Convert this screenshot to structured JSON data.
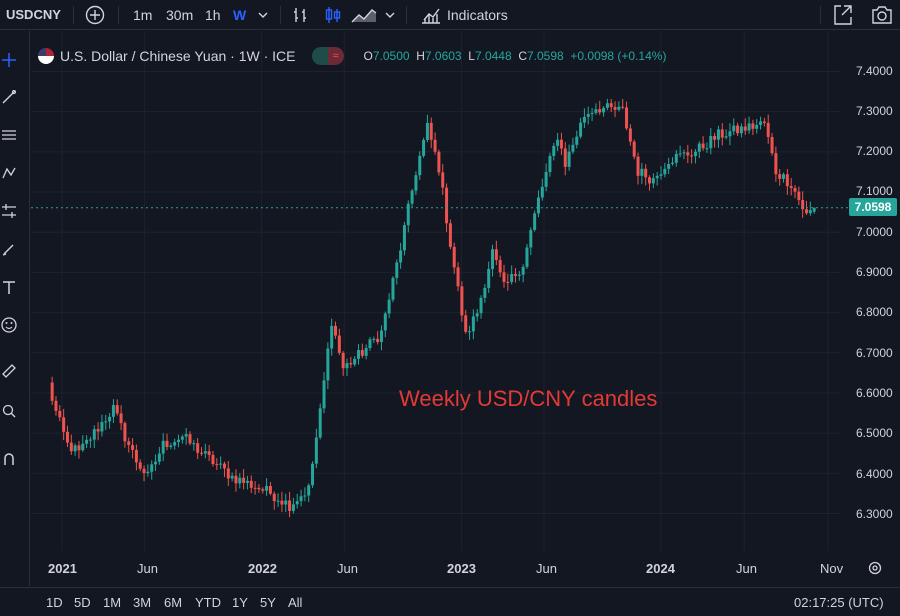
{
  "toolbar": {
    "symbol": "USDCNY",
    "intervals": [
      "1m",
      "30m",
      "1h",
      "W"
    ],
    "active_interval": "W",
    "indicators_label": "Indicators"
  },
  "legend": {
    "title": "U.S. Dollar / Chinese Yuan · 1W · ICE",
    "open_label": "O",
    "open": "7.0500",
    "high_label": "H",
    "high": "7.0603",
    "low_label": "L",
    "low": "7.0448",
    "close_label": "C",
    "close": "7.0598",
    "change": "+0.0098 (+0.14%)"
  },
  "annotation": "Weekly USD/CNY candles",
  "price_axis": {
    "ticks": [
      "7.4000",
      "7.3000",
      "7.2000",
      "7.1000",
      "7.0000",
      "6.9000",
      "6.8000",
      "6.7000",
      "6.6000",
      "6.5000",
      "6.4000",
      "6.3000"
    ],
    "last_price": "7.0598"
  },
  "time_axis": {
    "ticks": [
      "2021",
      "Jun",
      "2022",
      "Jun",
      "2023",
      "Jun",
      "2024",
      "Jun",
      "Nov"
    ]
  },
  "range_buttons": [
    "1D",
    "5D",
    "1M",
    "3M",
    "6M",
    "YTD",
    "1Y",
    "5Y",
    "All"
  ],
  "clock": "02:17:25 (UTC)",
  "colors": {
    "up": "#26a69a",
    "down": "#ef5350",
    "accent": "#2962ff",
    "annotation": "#e53935",
    "background": "#131722"
  },
  "chart_data": {
    "type": "candlestick",
    "title": "U.S. Dollar / Chinese Yuan · 1W · ICE",
    "ylim": [
      6.25,
      7.45
    ],
    "x_range": [
      "2020-12",
      "2024-11"
    ],
    "anchors": [
      [
        "2020-12-07",
        6.62
      ],
      [
        "2020-12-21",
        6.55
      ],
      [
        "2021-01-11",
        6.47
      ],
      [
        "2021-02-01",
        6.45
      ],
      [
        "2021-03-01",
        6.5
      ],
      [
        "2021-04-05",
        6.56
      ],
      [
        "2021-04-26",
        6.49
      ],
      [
        "2021-05-17",
        6.43
      ],
      [
        "2021-06-07",
        6.39
      ],
      [
        "2021-07-05",
        6.47
      ],
      [
        "2021-08-09",
        6.49
      ],
      [
        "2021-09-13",
        6.45
      ],
      [
        "2021-10-11",
        6.42
      ],
      [
        "2021-11-08",
        6.39
      ],
      [
        "2021-12-13",
        6.37
      ],
      [
        "2022-01-17",
        6.35
      ],
      [
        "2022-02-21",
        6.32
      ],
      [
        "2022-03-28",
        6.36
      ],
      [
        "2022-04-18",
        6.55
      ],
      [
        "2022-05-09",
        6.78
      ],
      [
        "2022-05-30",
        6.66
      ],
      [
        "2022-07-04",
        6.7
      ],
      [
        "2022-08-08",
        6.75
      ],
      [
        "2022-09-12",
        6.96
      ],
      [
        "2022-10-10",
        7.15
      ],
      [
        "2022-10-31",
        7.26
      ],
      [
        "2022-11-21",
        7.16
      ],
      [
        "2022-12-12",
        6.97
      ],
      [
        "2023-01-09",
        6.74
      ],
      [
        "2023-01-30",
        6.8
      ],
      [
        "2023-02-27",
        6.95
      ],
      [
        "2023-03-20",
        6.86
      ],
      [
        "2023-04-24",
        6.92
      ],
      [
        "2023-05-22",
        7.08
      ],
      [
        "2023-06-26",
        7.24
      ],
      [
        "2023-07-10",
        7.17
      ],
      [
        "2023-08-14",
        7.29
      ],
      [
        "2023-09-04",
        7.31
      ],
      [
        "2023-10-23",
        7.3
      ],
      [
        "2023-11-20",
        7.15
      ],
      [
        "2023-12-18",
        7.13
      ],
      [
        "2024-01-15",
        7.18
      ],
      [
        "2024-03-04",
        7.2
      ],
      [
        "2024-04-15",
        7.24
      ],
      [
        "2024-06-10",
        7.26
      ],
      [
        "2024-07-08",
        7.27
      ],
      [
        "2024-07-29",
        7.15
      ],
      [
        "2024-08-26",
        7.12
      ],
      [
        "2024-09-23",
        7.04
      ],
      [
        "2024-10-07",
        7.06
      ]
    ],
    "last": {
      "open": 7.05,
      "high": 7.0603,
      "low": 7.0448,
      "close": 7.0598
    }
  }
}
